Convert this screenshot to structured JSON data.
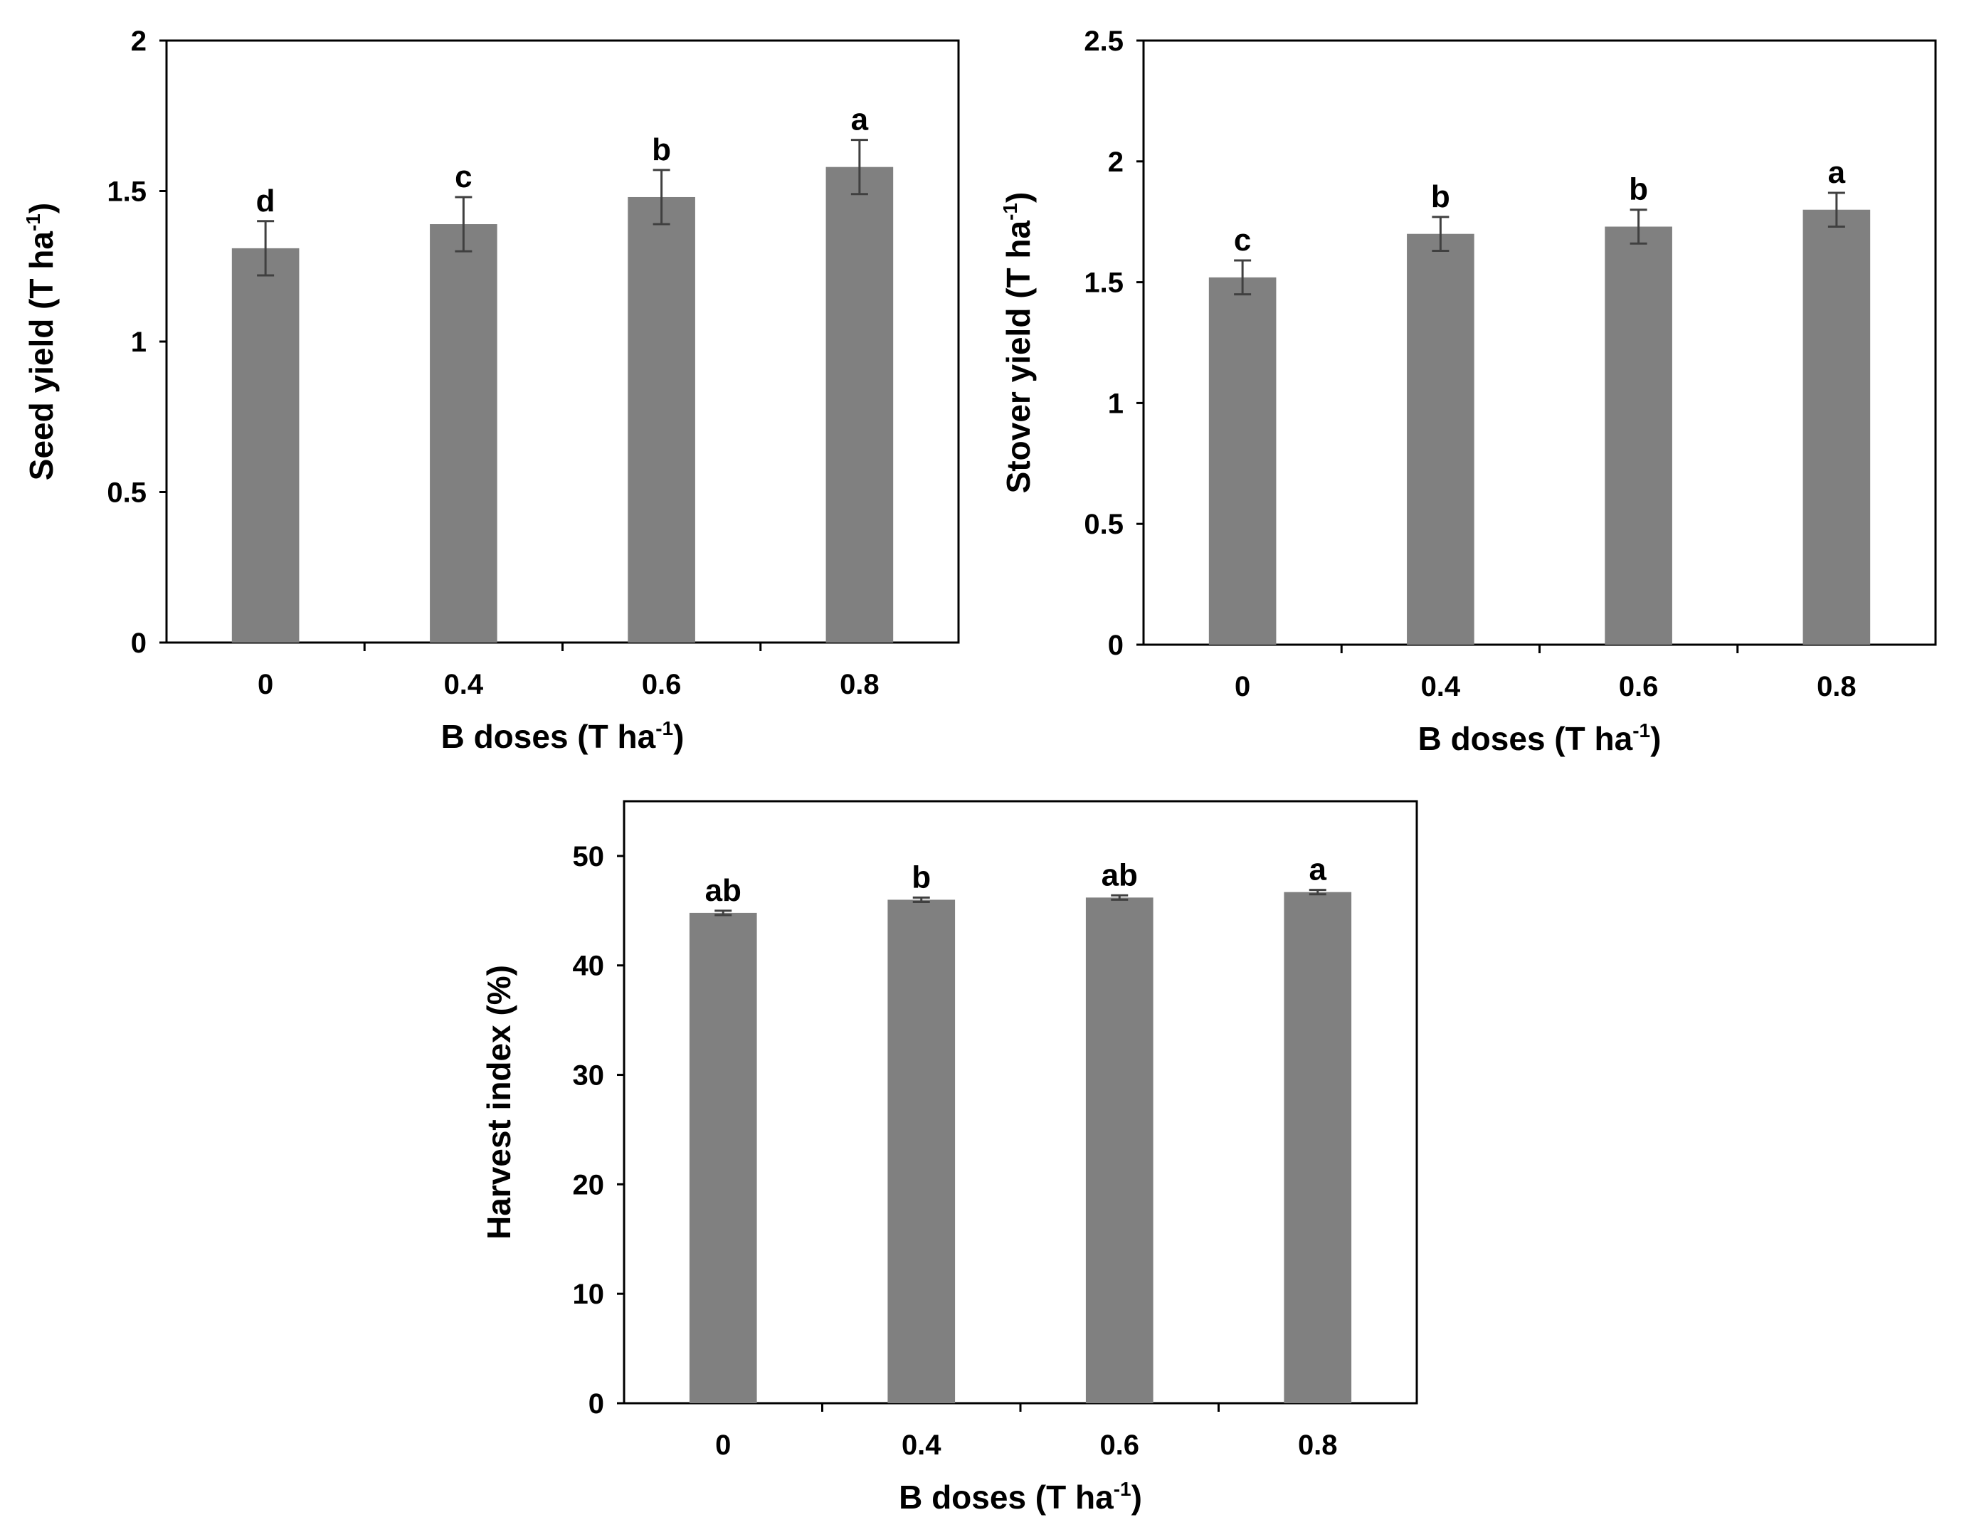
{
  "chart_data": [
    {
      "type": "bar",
      "id": "seed",
      "xlabel": {
        "text": "B doses (T ha",
        "sup": "-1",
        "close": ")"
      },
      "ylabel": {
        "text": "Seed yield (T ha",
        "sup": "-1",
        "close": ")"
      },
      "categories": [
        "0",
        "0.4",
        "0.6",
        "0.8"
      ],
      "values": [
        1.31,
        1.39,
        1.48,
        1.58
      ],
      "errors": [
        0.09,
        0.09,
        0.09,
        0.09
      ],
      "letters": [
        "d",
        "c",
        "b",
        "a"
      ],
      "ylim": [
        0,
        2
      ],
      "yticks": [
        0,
        0.5,
        1,
        1.5,
        2
      ],
      "ytick_labels": [
        "0",
        "0.5",
        "1",
        "1.5",
        "2"
      ],
      "bar_color": "#808080",
      "error_color": "#404040",
      "grid": false
    },
    {
      "type": "bar",
      "id": "stover",
      "xlabel": {
        "text": "B doses (T ha",
        "sup": "-1",
        "close": ")"
      },
      "ylabel": {
        "text": "Stover yield (T ha",
        "sup": "-1",
        "close": ")"
      },
      "categories": [
        "0",
        "0.4",
        "0.6",
        "0.8"
      ],
      "values": [
        1.52,
        1.7,
        1.73,
        1.8
      ],
      "errors": [
        0.07,
        0.07,
        0.07,
        0.07
      ],
      "letters": [
        "c",
        "b",
        "b",
        "a"
      ],
      "ylim": [
        0,
        2.5
      ],
      "yticks": [
        0,
        0.5,
        1,
        1.5,
        2,
        2.5
      ],
      "ytick_labels": [
        "0",
        "0.5",
        "1",
        "1.5",
        "2",
        "2.5"
      ],
      "bar_color": "#808080",
      "error_color": "#404040",
      "grid": false
    },
    {
      "type": "bar",
      "id": "harvest",
      "xlabel": {
        "text": "B doses (T ha",
        "sup": "-1",
        "close": ")"
      },
      "ylabel": {
        "text": "Harvest index (%)",
        "sup": "",
        "close": ""
      },
      "categories": [
        "0",
        "0.4",
        "0.6",
        "0.8"
      ],
      "values": [
        44.8,
        46.0,
        46.2,
        46.7
      ],
      "errors": [
        0.2,
        0.2,
        0.2,
        0.2
      ],
      "letters": [
        "ab",
        "b",
        "ab",
        "a"
      ],
      "ylim": [
        0,
        55
      ],
      "yticks": [
        0,
        10,
        20,
        30,
        40,
        50
      ],
      "ytick_labels": [
        "0",
        "10",
        "20",
        "30",
        "40",
        "50"
      ],
      "bar_color": "#808080",
      "error_color": "#404040",
      "grid": false
    }
  ]
}
